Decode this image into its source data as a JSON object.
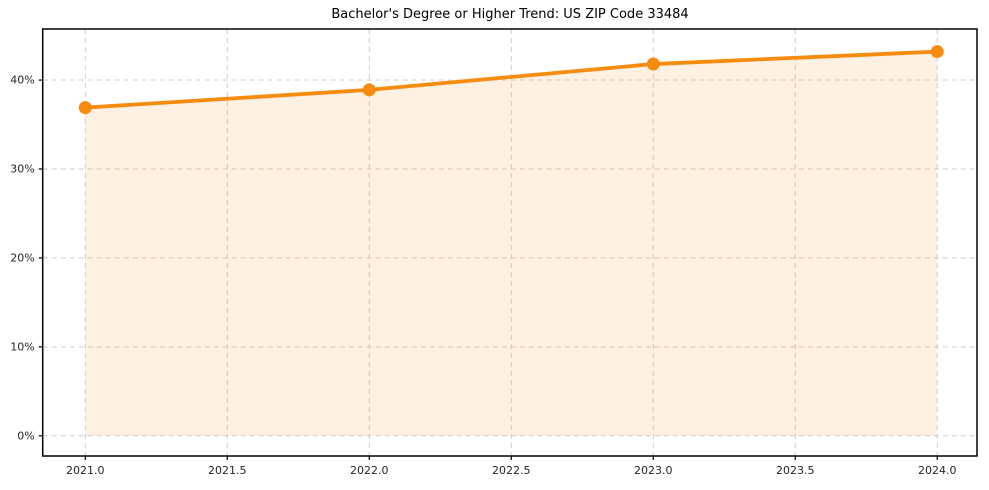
{
  "chart_data": {
    "type": "line",
    "title": "Bachelor's Degree or Higher Trend: US ZIP Code 33484",
    "xlabel": "",
    "ylabel": "",
    "x": [
      2021,
      2022,
      2023,
      2024
    ],
    "series": [
      {
        "name": "Bachelor's Degree or Higher",
        "values": [
          36.9,
          38.9,
          41.8,
          43.2
        ]
      }
    ],
    "xticks": [
      2021.0,
      2021.5,
      2022.0,
      2022.5,
      2023.0,
      2023.5,
      2024.0
    ],
    "xtick_labels": [
      "2021.0",
      "2021.5",
      "2022.0",
      "2022.5",
      "2023.0",
      "2023.5",
      "2024.0"
    ],
    "yticks": [
      0,
      10,
      20,
      30,
      40
    ],
    "ytick_labels": [
      "0%",
      "10%",
      "20%",
      "30%",
      "40%"
    ],
    "xlim": [
      2020.85,
      2024.14
    ],
    "ylim": [
      -2.27,
      45.74
    ],
    "grid": "dashed",
    "legend_position": "none",
    "area_fill": true,
    "fill_baseline": 0,
    "marker": "circle",
    "colors": {
      "line": "#f78b0e",
      "marker": "#f78b0e",
      "fill": "rgba(247, 139, 14, 0.12)",
      "grid": "#cdcdcd",
      "axis": "#000000",
      "tick_text": "#262626",
      "background": "#ffffff"
    }
  }
}
